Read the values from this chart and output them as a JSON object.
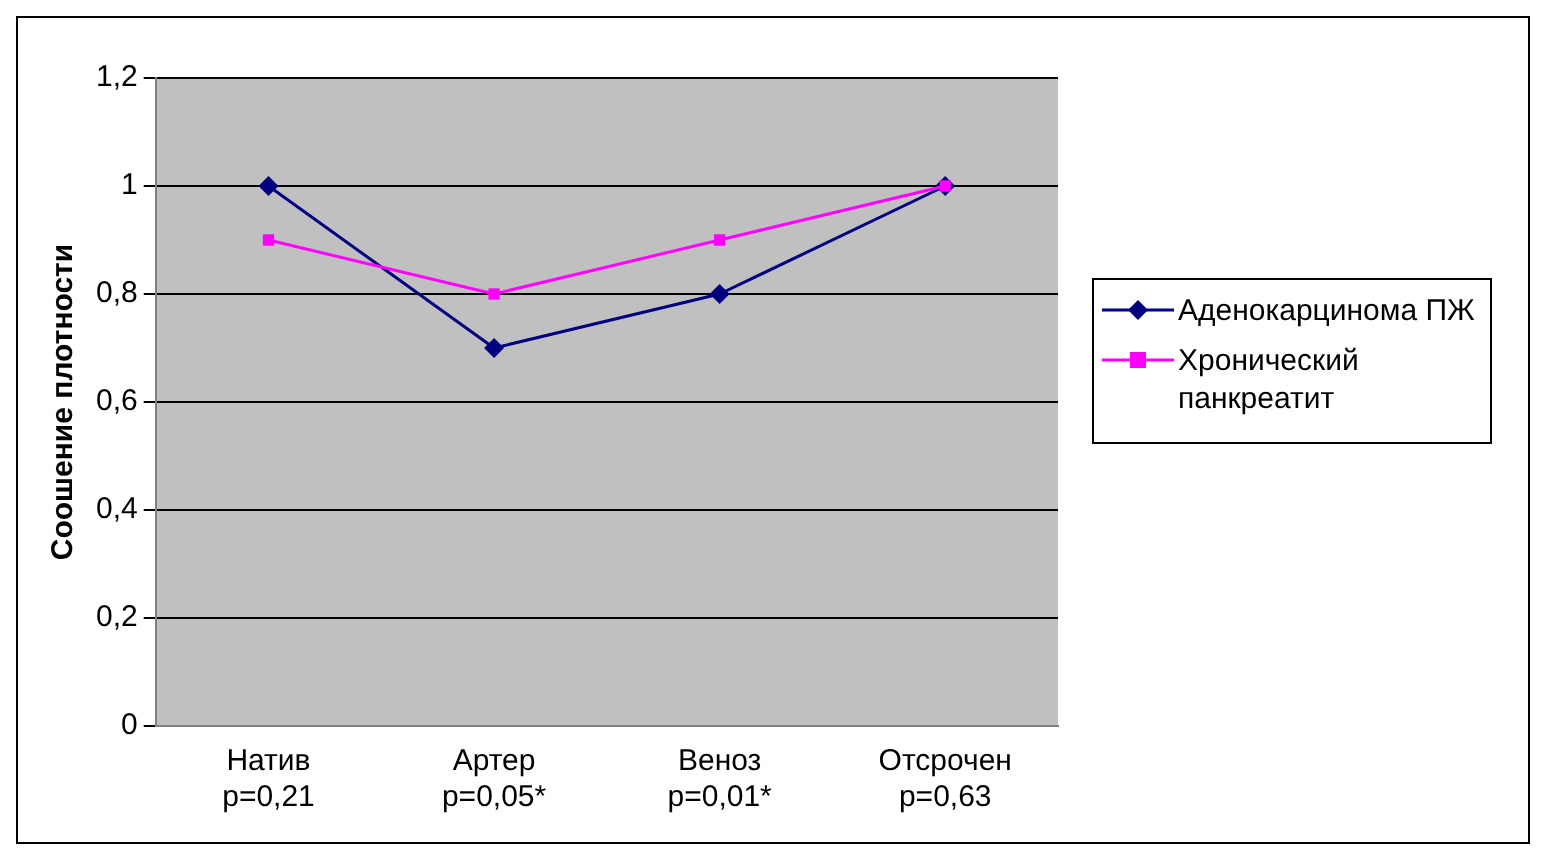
{
  "chart_data": {
    "type": "line",
    "ylabel": "Соошение плотности",
    "categories": [
      "Натив\np=0,21",
      "Артер\np=0,05*",
      "Веноз\np=0,01*",
      "Отсрочен\np=0,63"
    ],
    "series": [
      {
        "name": "Аденокарцинома ПЖ",
        "color": "#000080",
        "marker": "diamond",
        "values": [
          1,
          0.7,
          0.8,
          1
        ]
      },
      {
        "name": "Хронический панкреатит",
        "color": "#ff00ff",
        "marker": "square",
        "values": [
          0.9,
          0.8,
          0.9,
          1
        ]
      }
    ],
    "ylim": [
      0,
      1.2
    ],
    "yticks": [
      {
        "value": 0,
        "label": "0"
      },
      {
        "value": 0.2,
        "label": "0,2"
      },
      {
        "value": 0.4,
        "label": "0,4"
      },
      {
        "value": 0.6,
        "label": "0,6"
      },
      {
        "value": 0.8,
        "label": "0,8"
      },
      {
        "value": 1,
        "label": "1"
      },
      {
        "value": 1.2,
        "label": "1,2"
      }
    ],
    "grid": "y",
    "legend": "right",
    "line_style": "solid"
  }
}
